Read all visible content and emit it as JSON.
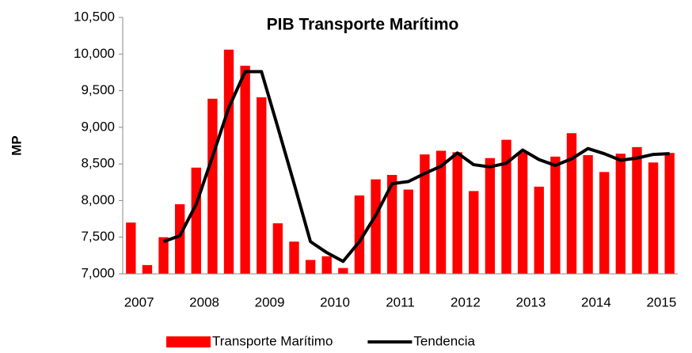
{
  "chart_data": {
    "type": "bar-line",
    "title": "PIB Transporte Marítimo",
    "ylabel": "MP",
    "categories": [
      "2007",
      null,
      null,
      null,
      "2008",
      null,
      null,
      null,
      "2009",
      null,
      null,
      null,
      "2010",
      null,
      null,
      null,
      "2011",
      null,
      null,
      null,
      "2012",
      null,
      null,
      null,
      "2013",
      null,
      null,
      null,
      "2014",
      null,
      null,
      null,
      "2015",
      null
    ],
    "series": [
      {
        "name": "Transporte Marítimo",
        "color": "#ff0000",
        "kind": "bar",
        "values": [
          7700,
          7120,
          7500,
          7950,
          8450,
          9390,
          10060,
          9840,
          9410,
          7690,
          7440,
          7190,
          7240,
          7080,
          8070,
          8290,
          8350,
          8150,
          8630,
          8680,
          8660,
          8130,
          8580,
          8830,
          8660,
          8190,
          8600,
          8920,
          8620,
          8390,
          8640,
          8730,
          8520,
          8650
        ]
      },
      {
        "name": "Tendencia",
        "color": "#000000",
        "kind": "line",
        "values": [
          null,
          null,
          7440,
          7520,
          7950,
          8600,
          9270,
          9760,
          9760,
          9000,
          8230,
          7440,
          7290,
          7170,
          7440,
          7800,
          8230,
          8260,
          8370,
          8470,
          8650,
          8490,
          8460,
          8510,
          8690,
          8560,
          8480,
          8570,
          8710,
          8640,
          8550,
          8580,
          8630,
          8640
        ]
      }
    ],
    "ylim": [
      7000,
      10500
    ],
    "yticks": [
      {
        "value": 7000,
        "label": "7,000"
      },
      {
        "value": 7500,
        "label": "7,500"
      },
      {
        "value": 8000,
        "label": "8,000"
      },
      {
        "value": 8500,
        "label": "8,500"
      },
      {
        "value": 9000,
        "label": "9,000"
      },
      {
        "value": 9500,
        "label": "9,500"
      },
      {
        "value": 10000,
        "label": "10,000"
      },
      {
        "value": 10500,
        "label": "10,500"
      }
    ],
    "legend": "bottom"
  }
}
